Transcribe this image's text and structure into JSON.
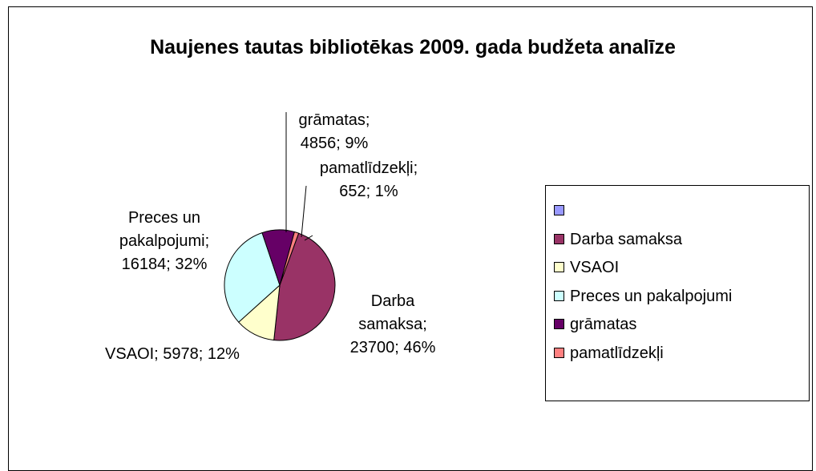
{
  "chart_data": {
    "type": "pie",
    "title": "Naujenes tautas bibliotēkas 2009. gada budžeta analīze",
    "categories": [
      null,
      "Darba samaksa",
      "VSAOI",
      "Preces un pakalpojumi",
      "grāmatas",
      "pamatlīdzekļi"
    ],
    "values": [
      null,
      23700,
      5978,
      16184,
      4856,
      652
    ],
    "value_labels": [
      null,
      "Darba samaksa; 23700; 46%",
      "VSAOI; 5978; 12%",
      "Preces un pakalpojumi; 16184; 32%",
      "grāmatas; 4856; 9%",
      "pamatlīdzekļi; 652; 1%"
    ],
    "colors": [
      "#9999ff",
      "#993366",
      "#ffffcc",
      "#ccffff",
      "#660066",
      "#ff8080"
    ],
    "legend": "right"
  }
}
